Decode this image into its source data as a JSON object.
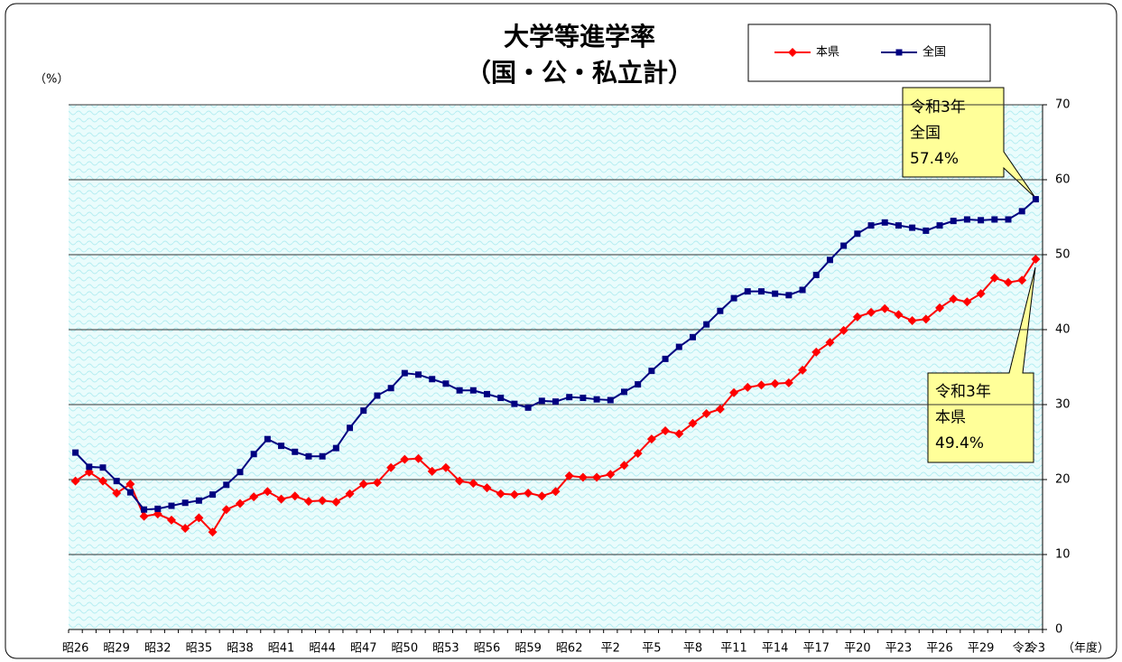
{
  "chart_data": {
    "type": "line",
    "title": "大学等進学率",
    "subtitle": "（国・公・私立計）",
    "y_label": "（%）",
    "x_label": "（年度）",
    "categories": [
      "昭26",
      null,
      null,
      "昭29",
      null,
      null,
      "昭32",
      null,
      null,
      "昭35",
      null,
      null,
      "昭38",
      null,
      null,
      "昭41",
      null,
      null,
      "昭44",
      null,
      null,
      "昭47",
      null,
      null,
      "昭50",
      null,
      null,
      "昭53",
      null,
      null,
      "昭56",
      null,
      null,
      "昭59",
      null,
      null,
      "昭62",
      null,
      null,
      "平2",
      null,
      null,
      "平5",
      null,
      null,
      "平8",
      null,
      null,
      "平11",
      null,
      null,
      "平14",
      null,
      null,
      "平17",
      null,
      null,
      "平20",
      null,
      null,
      "平23",
      null,
      null,
      "平26",
      null,
      null,
      "平29",
      null,
      null,
      "令2",
      "令3"
    ],
    "series": [
      {
        "name": "本県",
        "color": "#ff0000",
        "marker": "diamond",
        "values": [
          19.8,
          21.0,
          19.8,
          18.2,
          19.4,
          15.1,
          15.4,
          14.6,
          13.5,
          14.9,
          13.0,
          16.0,
          16.8,
          17.7,
          18.4,
          17.4,
          17.8,
          17.1,
          17.2,
          17.0,
          18.1,
          19.4,
          19.6,
          21.6,
          22.7,
          22.8,
          21.1,
          21.6,
          19.8,
          19.5,
          18.9,
          18.1,
          18.0,
          18.2,
          17.8,
          18.4,
          20.5,
          20.3,
          20.3,
          20.7,
          21.9,
          23.5,
          25.4,
          26.5,
          26.1,
          27.5,
          28.8,
          29.4,
          31.6,
          32.3,
          32.6,
          32.8,
          32.9,
          34.6,
          37.0,
          38.3,
          39.9,
          41.7,
          42.3,
          42.8,
          42.0,
          41.2,
          41.4,
          42.9,
          44.1,
          43.7,
          44.8,
          46.9,
          46.3,
          46.6,
          49.4
        ]
      },
      {
        "name": "全国",
        "color": "#000080",
        "marker": "square",
        "values": [
          23.6,
          21.7,
          21.6,
          19.8,
          18.3,
          16.0,
          16.1,
          16.5,
          16.9,
          17.2,
          18.0,
          19.3,
          21.0,
          23.4,
          25.4,
          24.5,
          23.7,
          23.1,
          23.1,
          24.2,
          26.9,
          29.2,
          31.2,
          32.2,
          34.2,
          34.0,
          33.4,
          32.8,
          31.9,
          31.9,
          31.4,
          30.9,
          30.1,
          29.6,
          30.5,
          30.4,
          31.0,
          30.9,
          30.7,
          30.6,
          31.7,
          32.7,
          34.5,
          36.1,
          37.7,
          39.0,
          40.7,
          42.5,
          44.2,
          45.1,
          45.1,
          44.8,
          44.6,
          45.3,
          47.3,
          49.3,
          51.2,
          52.8,
          53.9,
          54.3,
          53.9,
          53.6,
          53.2,
          53.9,
          54.5,
          54.7,
          54.6,
          54.7,
          54.7,
          55.8,
          57.4
        ]
      }
    ],
    "ylim": [
      0,
      70
    ],
    "yticks": [
      0,
      10,
      20,
      30,
      40,
      50,
      60,
      70
    ],
    "grid": true,
    "y_axis_side": "right",
    "legend": "top-right",
    "annotations": [
      {
        "lines": [
          "令和3年",
          "全国",
          "57.4%"
        ]
      },
      {
        "lines": [
          "令和3年",
          "本県",
          "49.4%"
        ]
      }
    ]
  }
}
